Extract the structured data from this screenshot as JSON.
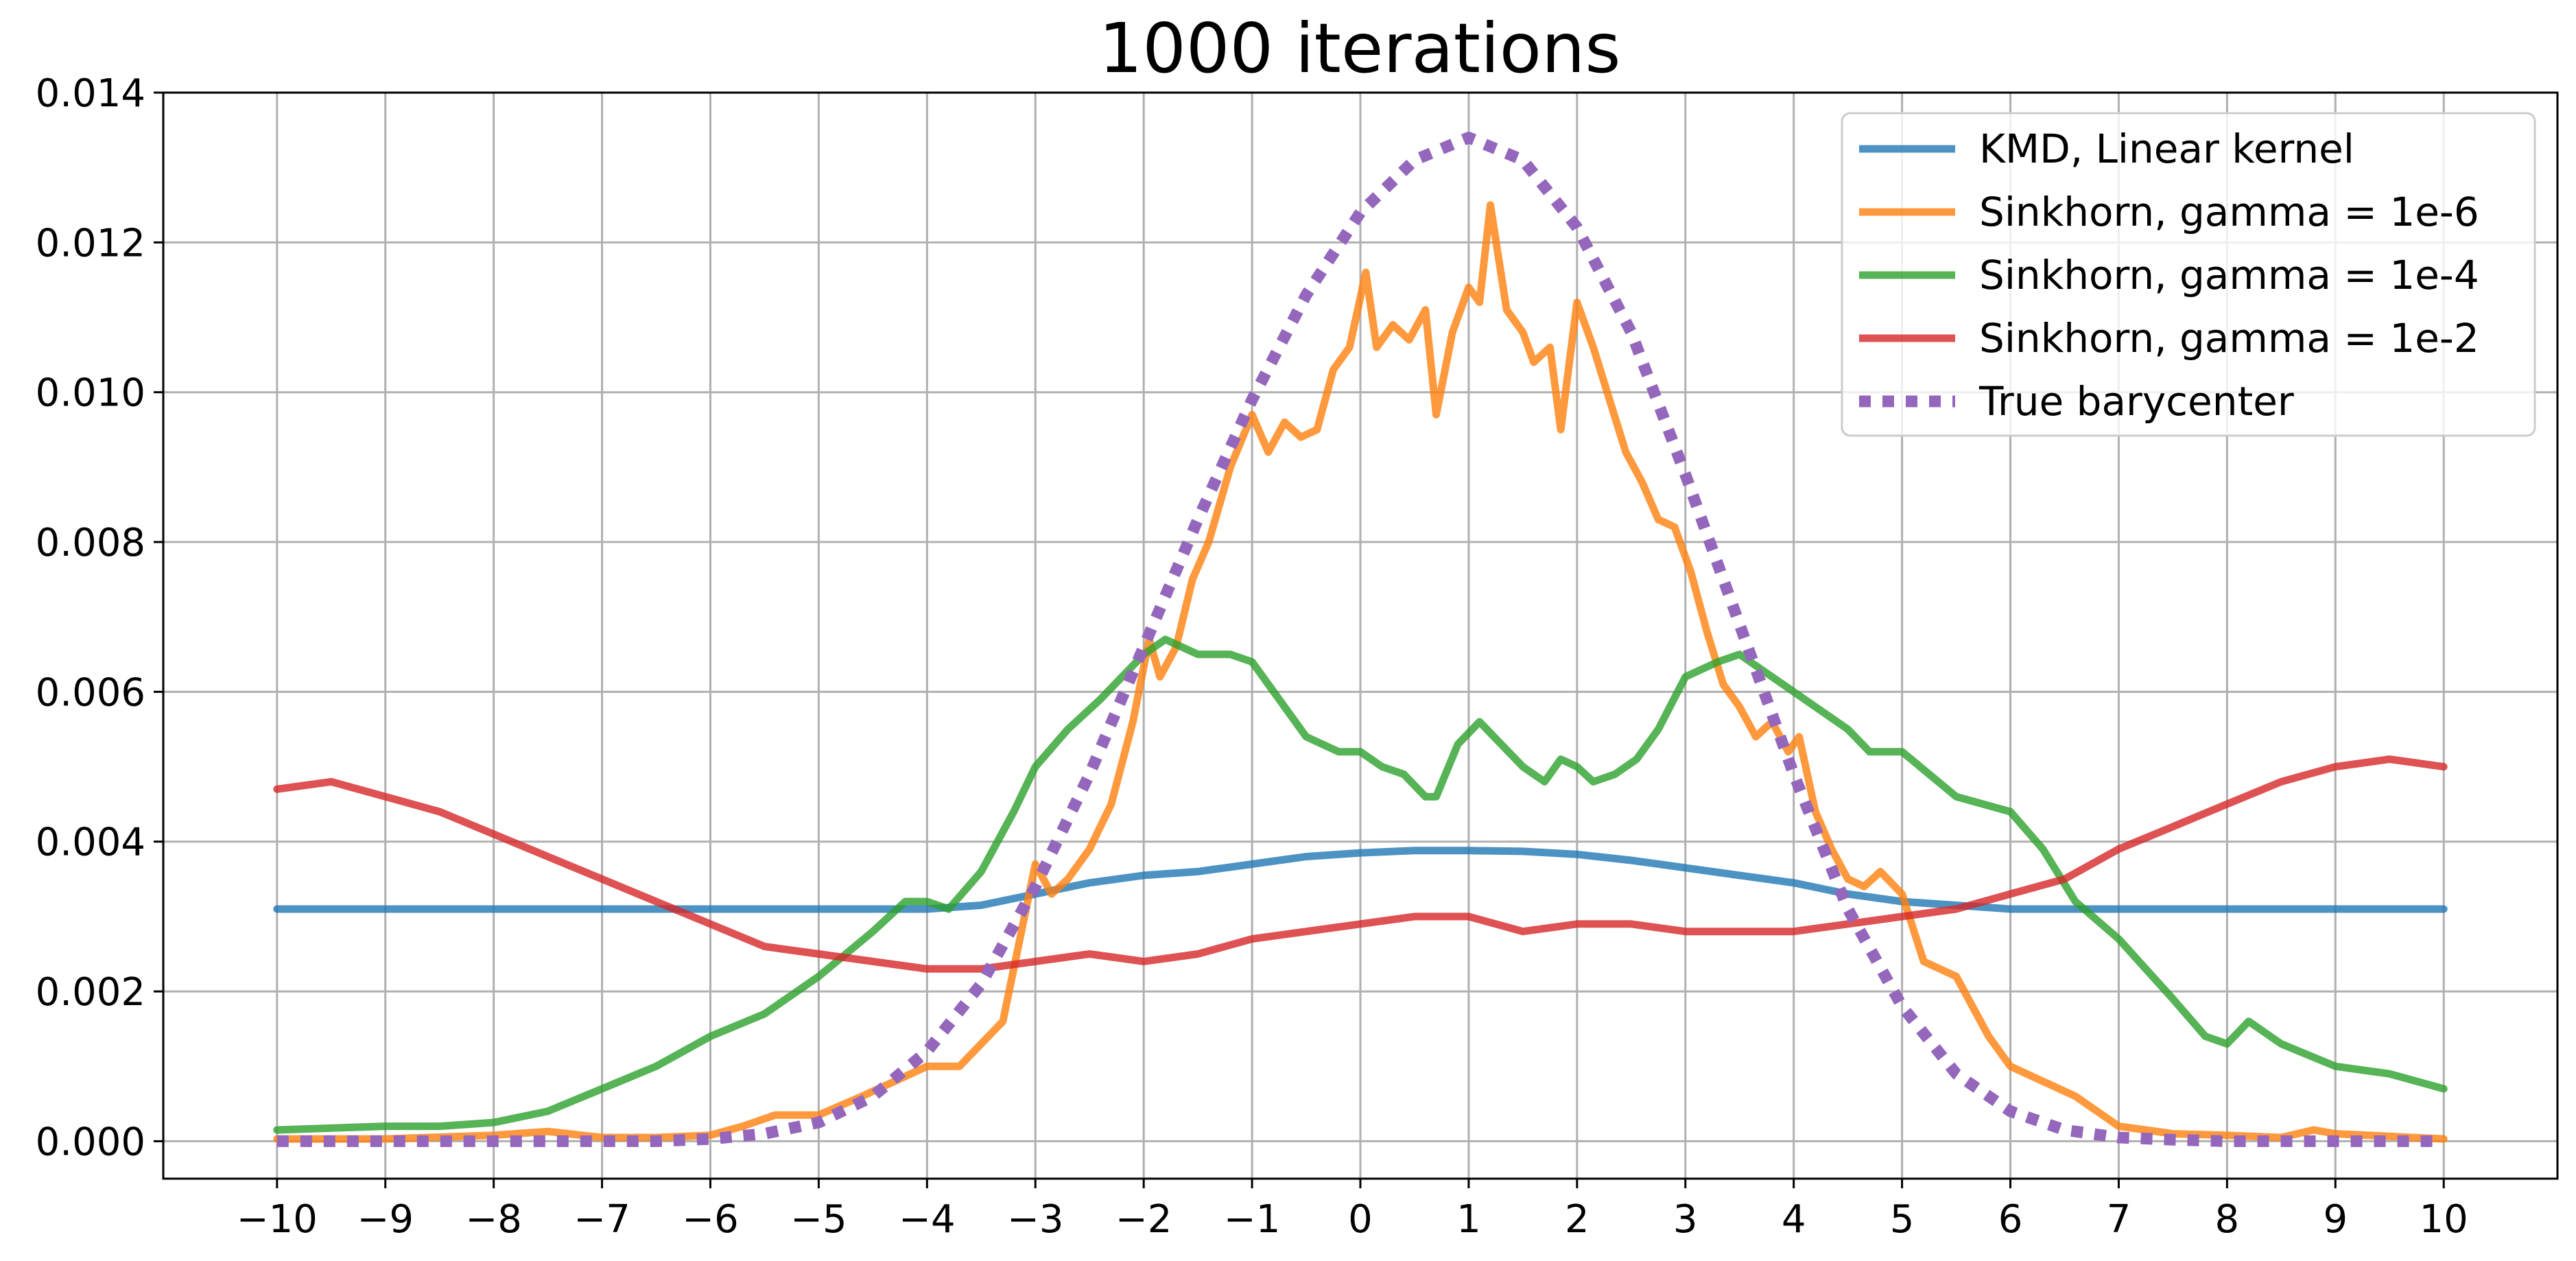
{
  "chart_data": {
    "type": "line",
    "title": "1000 iterations",
    "xlabel": "",
    "ylabel": "",
    "xlim": [
      -11.05,
      11.05
    ],
    "ylim": [
      -0.0005,
      0.014
    ],
    "grid": true,
    "legend_position": "top-right",
    "x_ticks": [
      -10,
      -9,
      -8,
      -7,
      -6,
      -5,
      -4,
      -3,
      -2,
      -1,
      0,
      1,
      2,
      3,
      4,
      5,
      6,
      7,
      8,
      9,
      10
    ],
    "x_tick_labels": [
      "−10",
      "−9",
      "−8",
      "−7",
      "−6",
      "−5",
      "−4",
      "−3",
      "−2",
      "−1",
      "0",
      "1",
      "2",
      "3",
      "4",
      "5",
      "6",
      "7",
      "8",
      "9",
      "10"
    ],
    "y_ticks": [
      0,
      0.002,
      0.004,
      0.006,
      0.008,
      0.01,
      0.012,
      0.014
    ],
    "y_tick_labels": [
      "0.000",
      "0.002",
      "0.004",
      "0.006",
      "0.008",
      "0.010",
      "0.012",
      "0.014"
    ],
    "series": [
      {
        "name": "KMD, Linear kernel",
        "color": "#1f77b4",
        "style": "solid",
        "x": [
          -10,
          -9,
          -8,
          -7,
          -6,
          -5,
          -4,
          -3.5,
          -3,
          -2.5,
          -2,
          -1.5,
          -1,
          -0.5,
          0,
          0.5,
          1,
          1.5,
          2,
          2.5,
          3,
          3.5,
          4,
          4.5,
          5,
          5.5,
          6,
          7,
          8,
          9,
          10
        ],
        "y": [
          0.0031,
          0.0031,
          0.0031,
          0.0031,
          0.0031,
          0.0031,
          0.0031,
          0.00315,
          0.0033,
          0.00345,
          0.00355,
          0.0036,
          0.0037,
          0.0038,
          0.00385,
          0.00388,
          0.00388,
          0.00387,
          0.00383,
          0.00375,
          0.00365,
          0.00355,
          0.00345,
          0.0033,
          0.0032,
          0.00315,
          0.0031,
          0.0031,
          0.0031,
          0.0031,
          0.0031
        ]
      },
      {
        "name": "Sinkhorn, gamma = 1e-6",
        "color": "#ff7f0e",
        "style": "solid",
        "x": [
          -10,
          -9,
          -8,
          -7.5,
          -7,
          -6.5,
          -6,
          -5.7,
          -5.4,
          -5,
          -4.6,
          -4.3,
          -4,
          -3.7,
          -3.3,
          -3,
          -2.85,
          -2.7,
          -2.5,
          -2.3,
          -2.1,
          -1.95,
          -1.85,
          -1.7,
          -1.55,
          -1.4,
          -1.2,
          -1.0,
          -0.85,
          -0.7,
          -0.55,
          -0.4,
          -0.25,
          -0.1,
          0.05,
          0.15,
          0.3,
          0.45,
          0.6,
          0.7,
          0.85,
          1.0,
          1.1,
          1.2,
          1.35,
          1.5,
          1.6,
          1.75,
          1.85,
          2.0,
          2.15,
          2.3,
          2.45,
          2.6,
          2.75,
          2.9,
          3.05,
          3.2,
          3.35,
          3.5,
          3.65,
          3.8,
          3.95,
          4.05,
          4.2,
          4.35,
          4.5,
          4.65,
          4.8,
          5.0,
          5.2,
          5.5,
          5.8,
          6.0,
          6.3,
          6.6,
          7.0,
          7.5,
          8.0,
          8.5,
          8.8,
          9.0,
          10
        ],
        "y": [
          3e-05,
          3e-05,
          8e-05,
          0.00013,
          5e-05,
          5e-05,
          8e-05,
          0.0002,
          0.00035,
          0.00035,
          0.0006,
          0.0008,
          0.001,
          0.001,
          0.0016,
          0.0037,
          0.0033,
          0.0035,
          0.0039,
          0.0045,
          0.0056,
          0.0067,
          0.0062,
          0.0066,
          0.0075,
          0.008,
          0.009,
          0.0097,
          0.0092,
          0.0096,
          0.0094,
          0.0095,
          0.0103,
          0.0106,
          0.0116,
          0.0106,
          0.0109,
          0.0107,
          0.0111,
          0.0097,
          0.0108,
          0.0114,
          0.0112,
          0.0125,
          0.0111,
          0.0108,
          0.0104,
          0.0106,
          0.0095,
          0.0112,
          0.0106,
          0.0099,
          0.0092,
          0.0088,
          0.0083,
          0.0082,
          0.0076,
          0.0068,
          0.0061,
          0.0058,
          0.0054,
          0.0056,
          0.0052,
          0.0054,
          0.0044,
          0.0039,
          0.0035,
          0.0034,
          0.0036,
          0.0033,
          0.0024,
          0.0022,
          0.0014,
          0.001,
          0.0008,
          0.0006,
          0.0002,
          0.0001,
          8e-05,
          5e-05,
          0.00015,
          0.0001,
          3e-05
        ]
      },
      {
        "name": "Sinkhorn, gamma = 1e-4",
        "color": "#2ca02c",
        "style": "solid",
        "x": [
          -10,
          -9,
          -8.5,
          -8,
          -7.5,
          -7,
          -6.5,
          -6,
          -5.5,
          -5,
          -4.5,
          -4.2,
          -4,
          -3.8,
          -3.5,
          -3.2,
          -3,
          -2.7,
          -2.4,
          -2.2,
          -2,
          -1.8,
          -1.5,
          -1.2,
          -1,
          -0.8,
          -0.5,
          -0.2,
          0,
          0.2,
          0.4,
          0.6,
          0.7,
          0.9,
          1.1,
          1.3,
          1.5,
          1.7,
          1.85,
          2.0,
          2.15,
          2.35,
          2.55,
          2.75,
          3.0,
          3.3,
          3.5,
          3.7,
          4.0,
          4.3,
          4.5,
          4.7,
          5.0,
          5.5,
          6.0,
          6.3,
          6.6,
          7,
          7.5,
          7.8,
          8.0,
          8.2,
          8.5,
          9,
          9.5,
          10
        ],
        "y": [
          0.00015,
          0.0002,
          0.0002,
          0.00025,
          0.0004,
          0.0007,
          0.001,
          0.0014,
          0.0017,
          0.0022,
          0.0028,
          0.0032,
          0.0032,
          0.0031,
          0.0036,
          0.0044,
          0.005,
          0.0055,
          0.0059,
          0.0062,
          0.0065,
          0.0067,
          0.0065,
          0.0065,
          0.0064,
          0.006,
          0.0054,
          0.0052,
          0.0052,
          0.005,
          0.0049,
          0.0046,
          0.0046,
          0.0053,
          0.0056,
          0.0053,
          0.005,
          0.0048,
          0.0051,
          0.005,
          0.0048,
          0.0049,
          0.0051,
          0.0055,
          0.0062,
          0.0064,
          0.0065,
          0.0063,
          0.006,
          0.0057,
          0.0055,
          0.0052,
          0.0052,
          0.0046,
          0.0044,
          0.0039,
          0.0032,
          0.0027,
          0.0019,
          0.0014,
          0.0013,
          0.0016,
          0.0013,
          0.001,
          0.0009,
          0.0007
        ]
      },
      {
        "name": "Sinkhorn, gamma = 1e-2",
        "color": "#d62728",
        "style": "solid",
        "x": [
          -10,
          -9.5,
          -9,
          -8.5,
          -8,
          -7.5,
          -7,
          -6.5,
          -6,
          -5.5,
          -5,
          -4.5,
          -4,
          -3.5,
          -3,
          -2.5,
          -2,
          -1.5,
          -1,
          -0.5,
          0,
          0.5,
          1,
          1.5,
          2,
          2.5,
          3,
          3.5,
          4,
          4.5,
          5,
          5.5,
          6,
          6.5,
          7,
          7.5,
          8,
          8.5,
          9,
          9.5,
          10
        ],
        "y": [
          0.0047,
          0.0048,
          0.0046,
          0.0044,
          0.0041,
          0.0038,
          0.0035,
          0.0032,
          0.0029,
          0.0026,
          0.0025,
          0.0024,
          0.0023,
          0.0023,
          0.0024,
          0.0025,
          0.0024,
          0.0025,
          0.0027,
          0.0028,
          0.0029,
          0.003,
          0.003,
          0.0028,
          0.0029,
          0.0029,
          0.0028,
          0.0028,
          0.0028,
          0.0029,
          0.003,
          0.0031,
          0.0033,
          0.0035,
          0.0039,
          0.0042,
          0.0045,
          0.0048,
          0.005,
          0.0051,
          0.005
        ]
      },
      {
        "name": "True barycenter",
        "color": "#9467bd",
        "style": "dotted",
        "x": [
          -10,
          -9.5,
          -9,
          -8.5,
          -8,
          -7.5,
          -7,
          -6.5,
          -6,
          -5.5,
          -5,
          -4.5,
          -4,
          -3.5,
          -3,
          -2.5,
          -2,
          -1.5,
          -1,
          -0.5,
          0,
          0.5,
          1,
          1.5,
          2,
          2.5,
          3,
          3.5,
          4,
          4.5,
          5,
          5.5,
          6,
          6.5,
          7,
          7.5,
          8,
          8.5,
          9,
          9.5,
          10
        ],
        "y": [
          0,
          0,
          0,
          0,
          0,
          0,
          0,
          0,
          3e-05,
          0.0001,
          0.00025,
          0.0006,
          0.0012,
          0.0021,
          0.0034,
          0.0049,
          0.0066,
          0.0083,
          0.0099,
          0.0113,
          0.0124,
          0.0131,
          0.0134,
          0.0131,
          0.0122,
          0.0108,
          0.0089,
          0.0069,
          0.0049,
          0.0031,
          0.0018,
          0.0009,
          0.0004,
          0.00015,
          5e-05,
          2e-05,
          0,
          0,
          0,
          0,
          0
        ]
      }
    ]
  }
}
